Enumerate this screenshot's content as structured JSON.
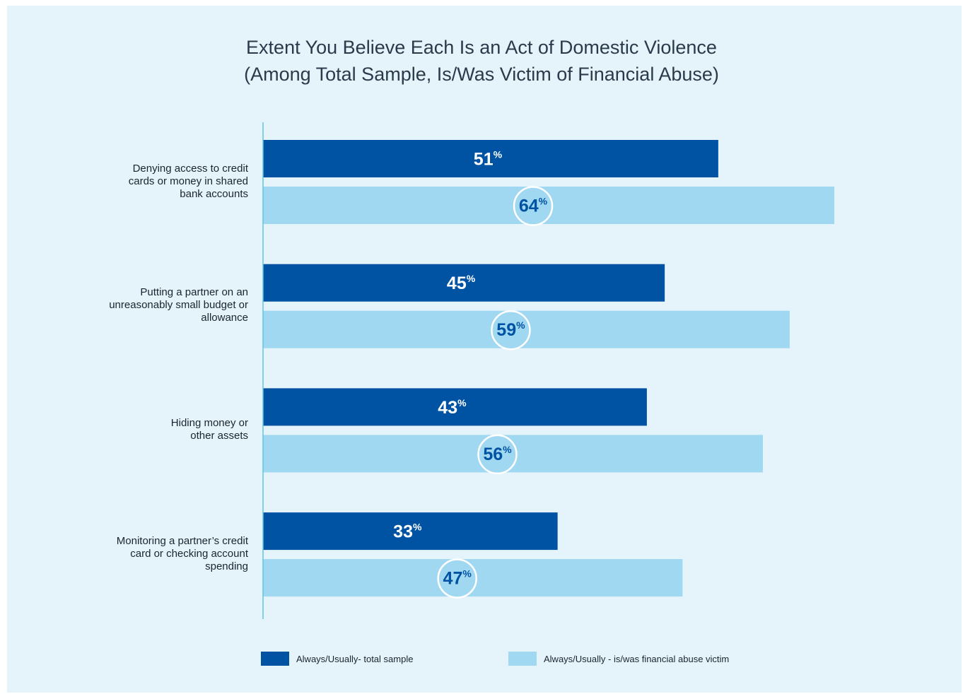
{
  "title_line1": "Extent You Believe Each Is an Act of Domestic Violence",
  "title_line2": "(Among Total Sample, Is/Was Victim of Financial Abuse)",
  "colors": {
    "background": "#e5f4fb",
    "total_sample": "#0052a3",
    "victim": "#a0d8f1",
    "victim_label": "#0052a3",
    "axis": "#62c4df"
  },
  "legend": {
    "total_sample": "Always/Usually- total sample",
    "victim": "Always/Usually - is/was financial abuse victim"
  },
  "chart_data": {
    "type": "bar",
    "orientation": "horizontal",
    "title": "Extent You Believe Each Is an Act of Domestic Violence (Among Total Sample, Is/Was Victim of Financial Abuse)",
    "categories": [
      "Denying access to credit cards or money in shared bank accounts",
      "Putting a partner on an unreasonably small budget or allowance",
      "Hiding money or other assets",
      "Monitoring a partner’s credit card or checking account spending"
    ],
    "category_lines": [
      [
        "Denying access to credit",
        "cards or money in shared",
        "bank accounts"
      ],
      [
        "Putting a partner on an",
        "unreasonably small budget or",
        "allowance"
      ],
      [
        "Hiding money or",
        "other assets"
      ],
      [
        "Monitoring a partner’s credit",
        "card or checking account",
        "spending"
      ]
    ],
    "series": [
      {
        "name": "Always/Usually- total sample",
        "values": [
          51,
          45,
          43,
          33
        ]
      },
      {
        "name": "Always/Usually - is/was financial abuse victim",
        "values": [
          64,
          59,
          56,
          47
        ]
      }
    ],
    "value_suffix": "%",
    "xlim": [
      0,
      64
    ],
    "legend_position": "bottom",
    "grid": false
  }
}
